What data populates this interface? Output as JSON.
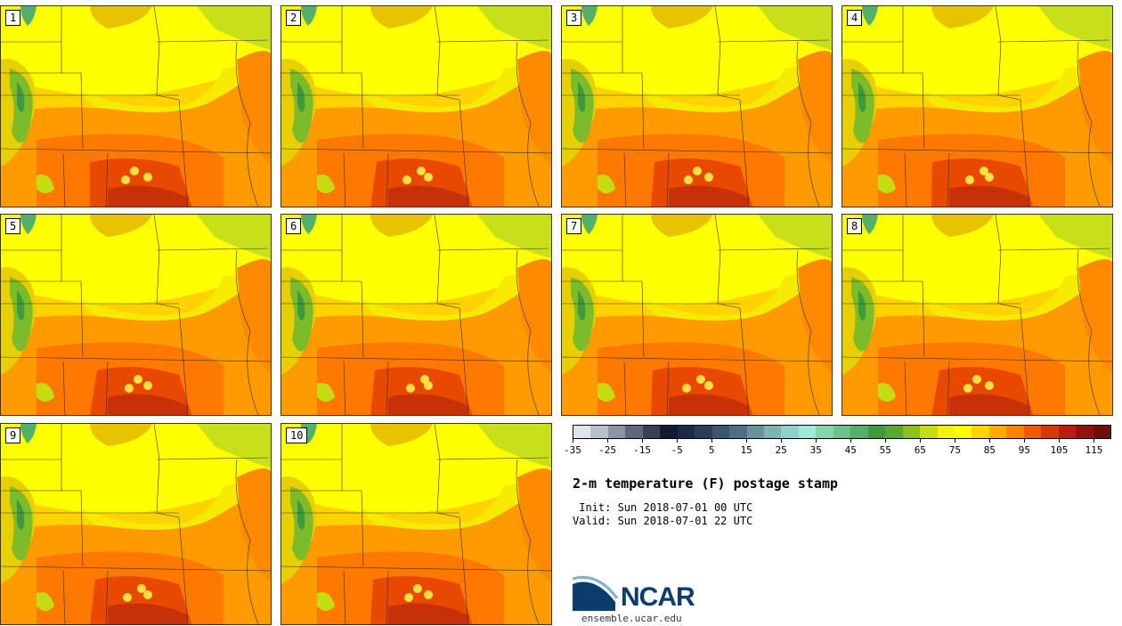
{
  "title": "2-m temperature (F) postage stamp",
  "init": " Init: Sun 2018-07-01 00 UTC",
  "valid": "Valid: Sun 2018-07-01 22 UTC",
  "panels": [
    {
      "label": "1"
    },
    {
      "label": "2"
    },
    {
      "label": "3"
    },
    {
      "label": "4"
    },
    {
      "label": "5"
    },
    {
      "label": "6"
    },
    {
      "label": "7"
    },
    {
      "label": "8"
    },
    {
      "label": "9"
    },
    {
      "label": "10"
    }
  ],
  "colorbar": {
    "colors": [
      "#dfe3ea",
      "#b9bfcb",
      "#8d94a6",
      "#5f667d",
      "#38405a",
      "#101a33",
      "#1b2a45",
      "#2a3e5b",
      "#3b5570",
      "#4f6d84",
      "#6a909c",
      "#7db3b3",
      "#8fd0c8",
      "#a0e8d8",
      "#86d4a8",
      "#6cc28c",
      "#52b06a",
      "#3f9a3d",
      "#5aa82f",
      "#8cc21d",
      "#c5dc12",
      "#f2f20a",
      "#ffff00",
      "#ffd500",
      "#ffab00",
      "#ff8200",
      "#f25a00",
      "#d93a05",
      "#b81e0a",
      "#94120a",
      "#6e0e08"
    ],
    "tick_labels": [
      "-35",
      "-25",
      "-15",
      "-5",
      "5",
      "15",
      "25",
      "35",
      "45",
      "55",
      "65",
      "75",
      "85",
      "95",
      "105",
      "115"
    ]
  },
  "logo": {
    "text": "NCAR",
    "site": "ensemble.ucar.edu"
  }
}
